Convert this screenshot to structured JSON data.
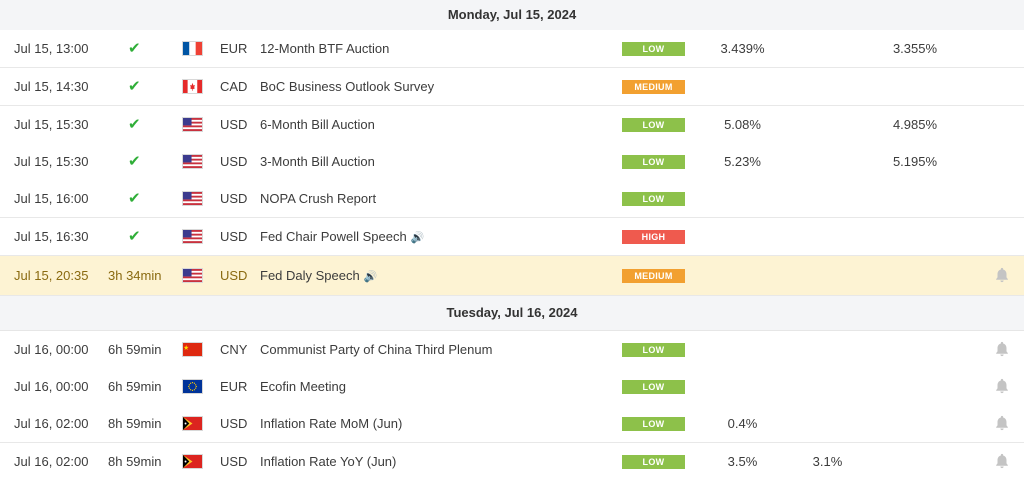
{
  "date_headers": [
    "Monday, Jul 15, 2024",
    "Tuesday, Jul 16, 2024"
  ],
  "impact_labels": {
    "low": "LOW",
    "medium": "MEDIUM",
    "high": "HIGH"
  },
  "icons": {
    "status_done": "check-icon",
    "speech": "speaker-icon",
    "alert": "bell-icon"
  },
  "colors": {
    "low": "#8dc14a",
    "medium": "#f2a030",
    "high": "#ef5a4e",
    "check": "#2fae38",
    "highlight": "#fdf3d3"
  },
  "events": [
    {
      "time": "Jul 15, 13:00",
      "status": "",
      "done": true,
      "flag": "fr",
      "currency": "EUR",
      "event": "12-Month BTF Auction",
      "speech": false,
      "impact": "LOW",
      "actual": "3.439%",
      "forecast": "",
      "previous": "3.355%"
    },
    {
      "time": "Jul 15, 14:30",
      "status": "",
      "done": true,
      "flag": "ca",
      "currency": "CAD",
      "event": "BoC Business Outlook Survey",
      "speech": false,
      "impact": "MEDIUM",
      "actual": "",
      "forecast": "",
      "previous": ""
    },
    {
      "time": "Jul 15, 15:30",
      "status": "",
      "done": true,
      "flag": "us",
      "currency": "USD",
      "event": "6-Month Bill Auction",
      "speech": false,
      "impact": "LOW",
      "actual": "5.08%",
      "forecast": "",
      "previous": "4.985%"
    },
    {
      "time": "Jul 15, 15:30",
      "status": "",
      "done": true,
      "flag": "us",
      "currency": "USD",
      "event": "3-Month Bill Auction",
      "speech": false,
      "impact": "LOW",
      "actual": "5.23%",
      "forecast": "",
      "previous": "5.195%"
    },
    {
      "time": "Jul 15, 16:00",
      "status": "",
      "done": true,
      "flag": "us",
      "currency": "USD",
      "event": "NOPA Crush Report",
      "speech": false,
      "impact": "LOW",
      "actual": "",
      "forecast": "",
      "previous": ""
    },
    {
      "time": "Jul 15, 16:30",
      "status": "",
      "done": true,
      "flag": "us",
      "currency": "USD",
      "event": "Fed Chair Powell Speech",
      "speech": true,
      "impact": "HIGH",
      "actual": "",
      "forecast": "",
      "previous": ""
    },
    {
      "time": "Jul 15, 20:35",
      "status": "3h 34min",
      "done": false,
      "flag": "us",
      "currency": "USD",
      "event": "Fed Daly Speech",
      "speech": true,
      "impact": "MEDIUM",
      "actual": "",
      "forecast": "",
      "previous": "",
      "highlight": true,
      "bell": true
    },
    {
      "time": "Jul 16, 00:00",
      "status": "6h 59min",
      "done": false,
      "flag": "cn",
      "currency": "CNY",
      "event": "Communist Party of China Third Plenum",
      "speech": false,
      "impact": "LOW",
      "actual": "",
      "forecast": "",
      "previous": "",
      "bell": true
    },
    {
      "time": "Jul 16, 00:00",
      "status": "6h 59min",
      "done": false,
      "flag": "eu",
      "currency": "EUR",
      "event": "Ecofin Meeting",
      "speech": false,
      "impact": "LOW",
      "actual": "",
      "forecast": "",
      "previous": "",
      "bell": true
    },
    {
      "time": "Jul 16, 02:00",
      "status": "8h 59min",
      "done": false,
      "flag": "tl",
      "currency": "USD",
      "event": "Inflation Rate MoM (Jun)",
      "speech": false,
      "impact": "LOW",
      "actual": "0.4%",
      "forecast": "",
      "previous": "",
      "bell": true
    },
    {
      "time": "Jul 16, 02:00",
      "status": "8h 59min",
      "done": false,
      "flag": "tl",
      "currency": "USD",
      "event": "Inflation Rate YoY (Jun)",
      "speech": false,
      "impact": "LOW",
      "actual": "3.5%",
      "forecast": "3.1%",
      "previous": "",
      "bell": true
    }
  ]
}
